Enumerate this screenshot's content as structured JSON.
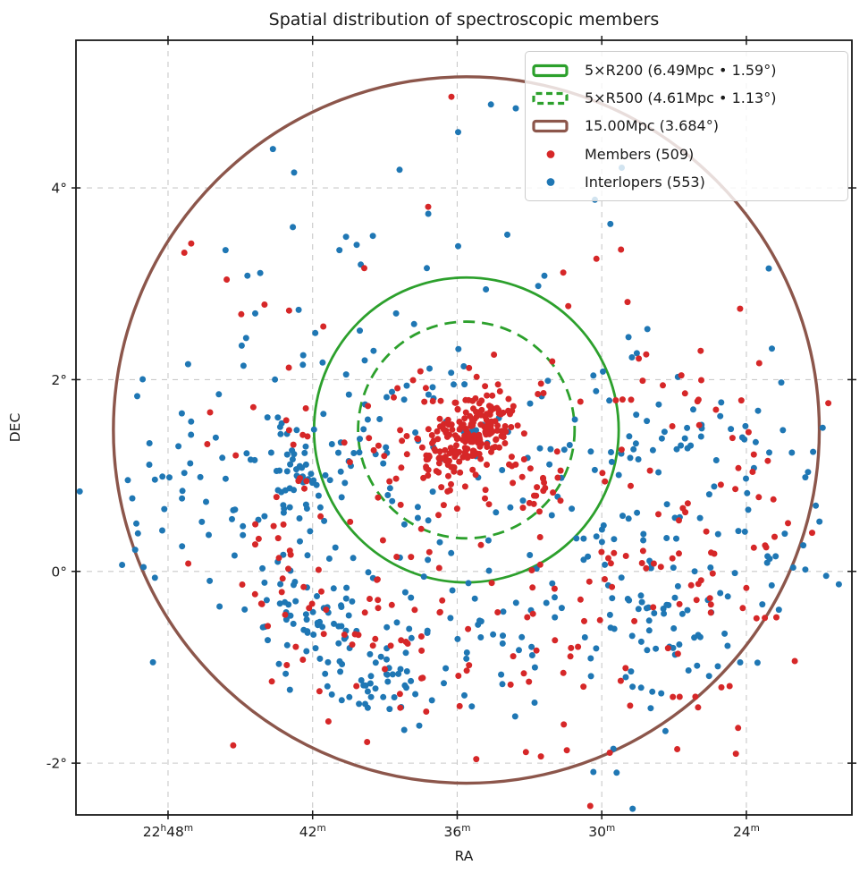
{
  "chart_data": {
    "type": "scatter",
    "title": "Spatial distribution of spectroscopic members",
    "xlabel": "RA",
    "ylabel": "DEC",
    "x_axis": {
      "label": "RA",
      "hour": 22,
      "direction": "reversed",
      "left_ra_min": 51.82,
      "right_ra_min": 19.62,
      "ticks": [
        {
          "ra_min": 48,
          "parts": [
            {
              "t": "22"
            },
            {
              "t": "h",
              "sup": true
            },
            {
              "t": "48"
            },
            {
              "t": "m",
              "sup": true
            }
          ]
        },
        {
          "ra_min": 42,
          "parts": [
            {
              "t": "42"
            },
            {
              "t": "m",
              "sup": true
            }
          ]
        },
        {
          "ra_min": 36,
          "parts": [
            {
              "t": "36"
            },
            {
              "t": "m",
              "sup": true
            }
          ]
        },
        {
          "ra_min": 30,
          "parts": [
            {
              "t": "30"
            },
            {
              "t": "m",
              "sup": true
            }
          ]
        },
        {
          "ra_min": 24,
          "parts": [
            {
              "t": "24"
            },
            {
              "t": "m",
              "sup": true
            }
          ]
        }
      ]
    },
    "y_axis": {
      "label": "DEC",
      "top_deg": 5.54,
      "bottom_deg": -2.54,
      "ticks": [
        {
          "dec_deg": 4,
          "label": "4°"
        },
        {
          "dec_deg": 2,
          "label": "2°"
        },
        {
          "dec_deg": 0,
          "label": "0°"
        },
        {
          "dec_deg": -2,
          "label": "-2°"
        }
      ]
    },
    "grid": true,
    "legend_position": "upper right",
    "center": {
      "ra_min": 35.62,
      "dec_deg": 1.475
    },
    "circles": [
      {
        "name": "5xR200",
        "label": "5×R200 (6.49Mpc • 1.59°)",
        "radius_deg": 1.59,
        "radius_mpc": 6.49,
        "style": "solid",
        "color": "#2ca02c",
        "stroke_px": 2.8
      },
      {
        "name": "5xR500",
        "label": "5×R500 (4.61Mpc • 1.13°)",
        "radius_deg": 1.13,
        "radius_mpc": 4.61,
        "style": "dashed",
        "color": "#2ca02c",
        "stroke_px": 2.8
      },
      {
        "name": "15Mpc",
        "label": "15.00Mpc (3.684°)",
        "radius_deg": 3.684,
        "radius_mpc": 15.0,
        "style": "solid",
        "color": "#8c564b",
        "stroke_px": 3.4
      }
    ],
    "blob_format": [
      "ra_min",
      "dec_deg",
      "sigma_ra_min",
      "sigma_dec_deg",
      "count",
      "tilt_deg_per_sigma"
    ],
    "series": [
      {
        "name": "Members",
        "legend_label": "Members (509)",
        "count": 509,
        "color": "#d62728",
        "blobs": [
          [
            35.57,
            1.45,
            0.96,
            0.19,
            185,
            -0.1
          ],
          [
            35.61,
            1.32,
            2.04,
            0.37,
            70,
            0
          ],
          [
            42.73,
            0.69,
            3.15,
            0.51,
            28,
            0
          ],
          [
            42.73,
            -0.2,
            0.9,
            0.35,
            12,
            0
          ],
          [
            40.32,
            -0.62,
            2.78,
            0.51,
            40,
            0
          ],
          [
            31.79,
            -0.57,
            3.15,
            0.61,
            45,
            0
          ],
          [
            26.23,
            0.41,
            2.78,
            0.7,
            49,
            0
          ],
          [
            25.67,
            1.48,
            2.04,
            0.42,
            22,
            0
          ],
          [
            35.69,
            3.16,
            5.93,
            0.65,
            11,
            0
          ],
          [
            32.53,
            0.78,
            0.67,
            0.13,
            16,
            0
          ],
          [
            43.84,
            1.95,
            2.97,
            0.47,
            12,
            0
          ],
          [
            36.43,
            -1.41,
            4.45,
            0.37,
            10,
            0
          ],
          [
            25.3,
            -1.41,
            1.0,
            0.25,
            6,
            0
          ]
        ],
        "extra_points": [
          [
            36.24,
            4.95
          ],
          [
            24.26,
            2.74
          ],
          [
            28.93,
            2.81
          ]
        ]
      },
      {
        "name": "Interlopers",
        "legend_label": "Interlopers (553)",
        "count": 553,
        "color": "#1f77b4",
        "blobs": [
          [
            43.47,
            0.875,
            2.97,
            0.61,
            80,
            0
          ],
          [
            42.84,
            1.11,
            0.52,
            0.35,
            30,
            0
          ],
          [
            42.92,
            -0.385,
            1.0,
            0.45,
            30,
            0
          ],
          [
            39.84,
            -0.99,
            1.56,
            0.3,
            70,
            0.2
          ],
          [
            35.69,
            -0.57,
            2.6,
            0.45,
            50,
            0
          ],
          [
            26.6,
            0.36,
            3.34,
            0.79,
            99,
            0
          ],
          [
            26.04,
            1.595,
            2.6,
            0.37,
            35,
            0
          ],
          [
            35.69,
            1.25,
            2.78,
            0.56,
            60,
            0
          ],
          [
            38.28,
            2.88,
            4.82,
            0.61,
            28,
            0
          ],
          [
            36.43,
            4.28,
            5.56,
            0.56,
            6,
            0
          ],
          [
            48.48,
            1.11,
            1.48,
            0.65,
            18,
            0
          ],
          [
            27.34,
            -0.62,
            1.3,
            0.3,
            35,
            0
          ],
          [
            28.82,
            -1.97,
            0.8,
            0.35,
            6,
            0
          ]
        ],
        "extra_points": [
          [
            34.6,
            4.87
          ],
          [
            33.57,
            4.83
          ],
          [
            42.77,
            4.16
          ],
          [
            37.2,
            3.73
          ],
          [
            40.0,
            3.2
          ],
          [
            23.07,
            3.16
          ]
        ]
      }
    ],
    "marker_radius_px": 3.5,
    "seed": 7,
    "style": {
      "grid_color": "#c9c9c9",
      "spine_color": "#1a1a1a",
      "text_color": "#1a1a1a",
      "background": "#ffffff",
      "legend_border": "#cccccc"
    }
  }
}
